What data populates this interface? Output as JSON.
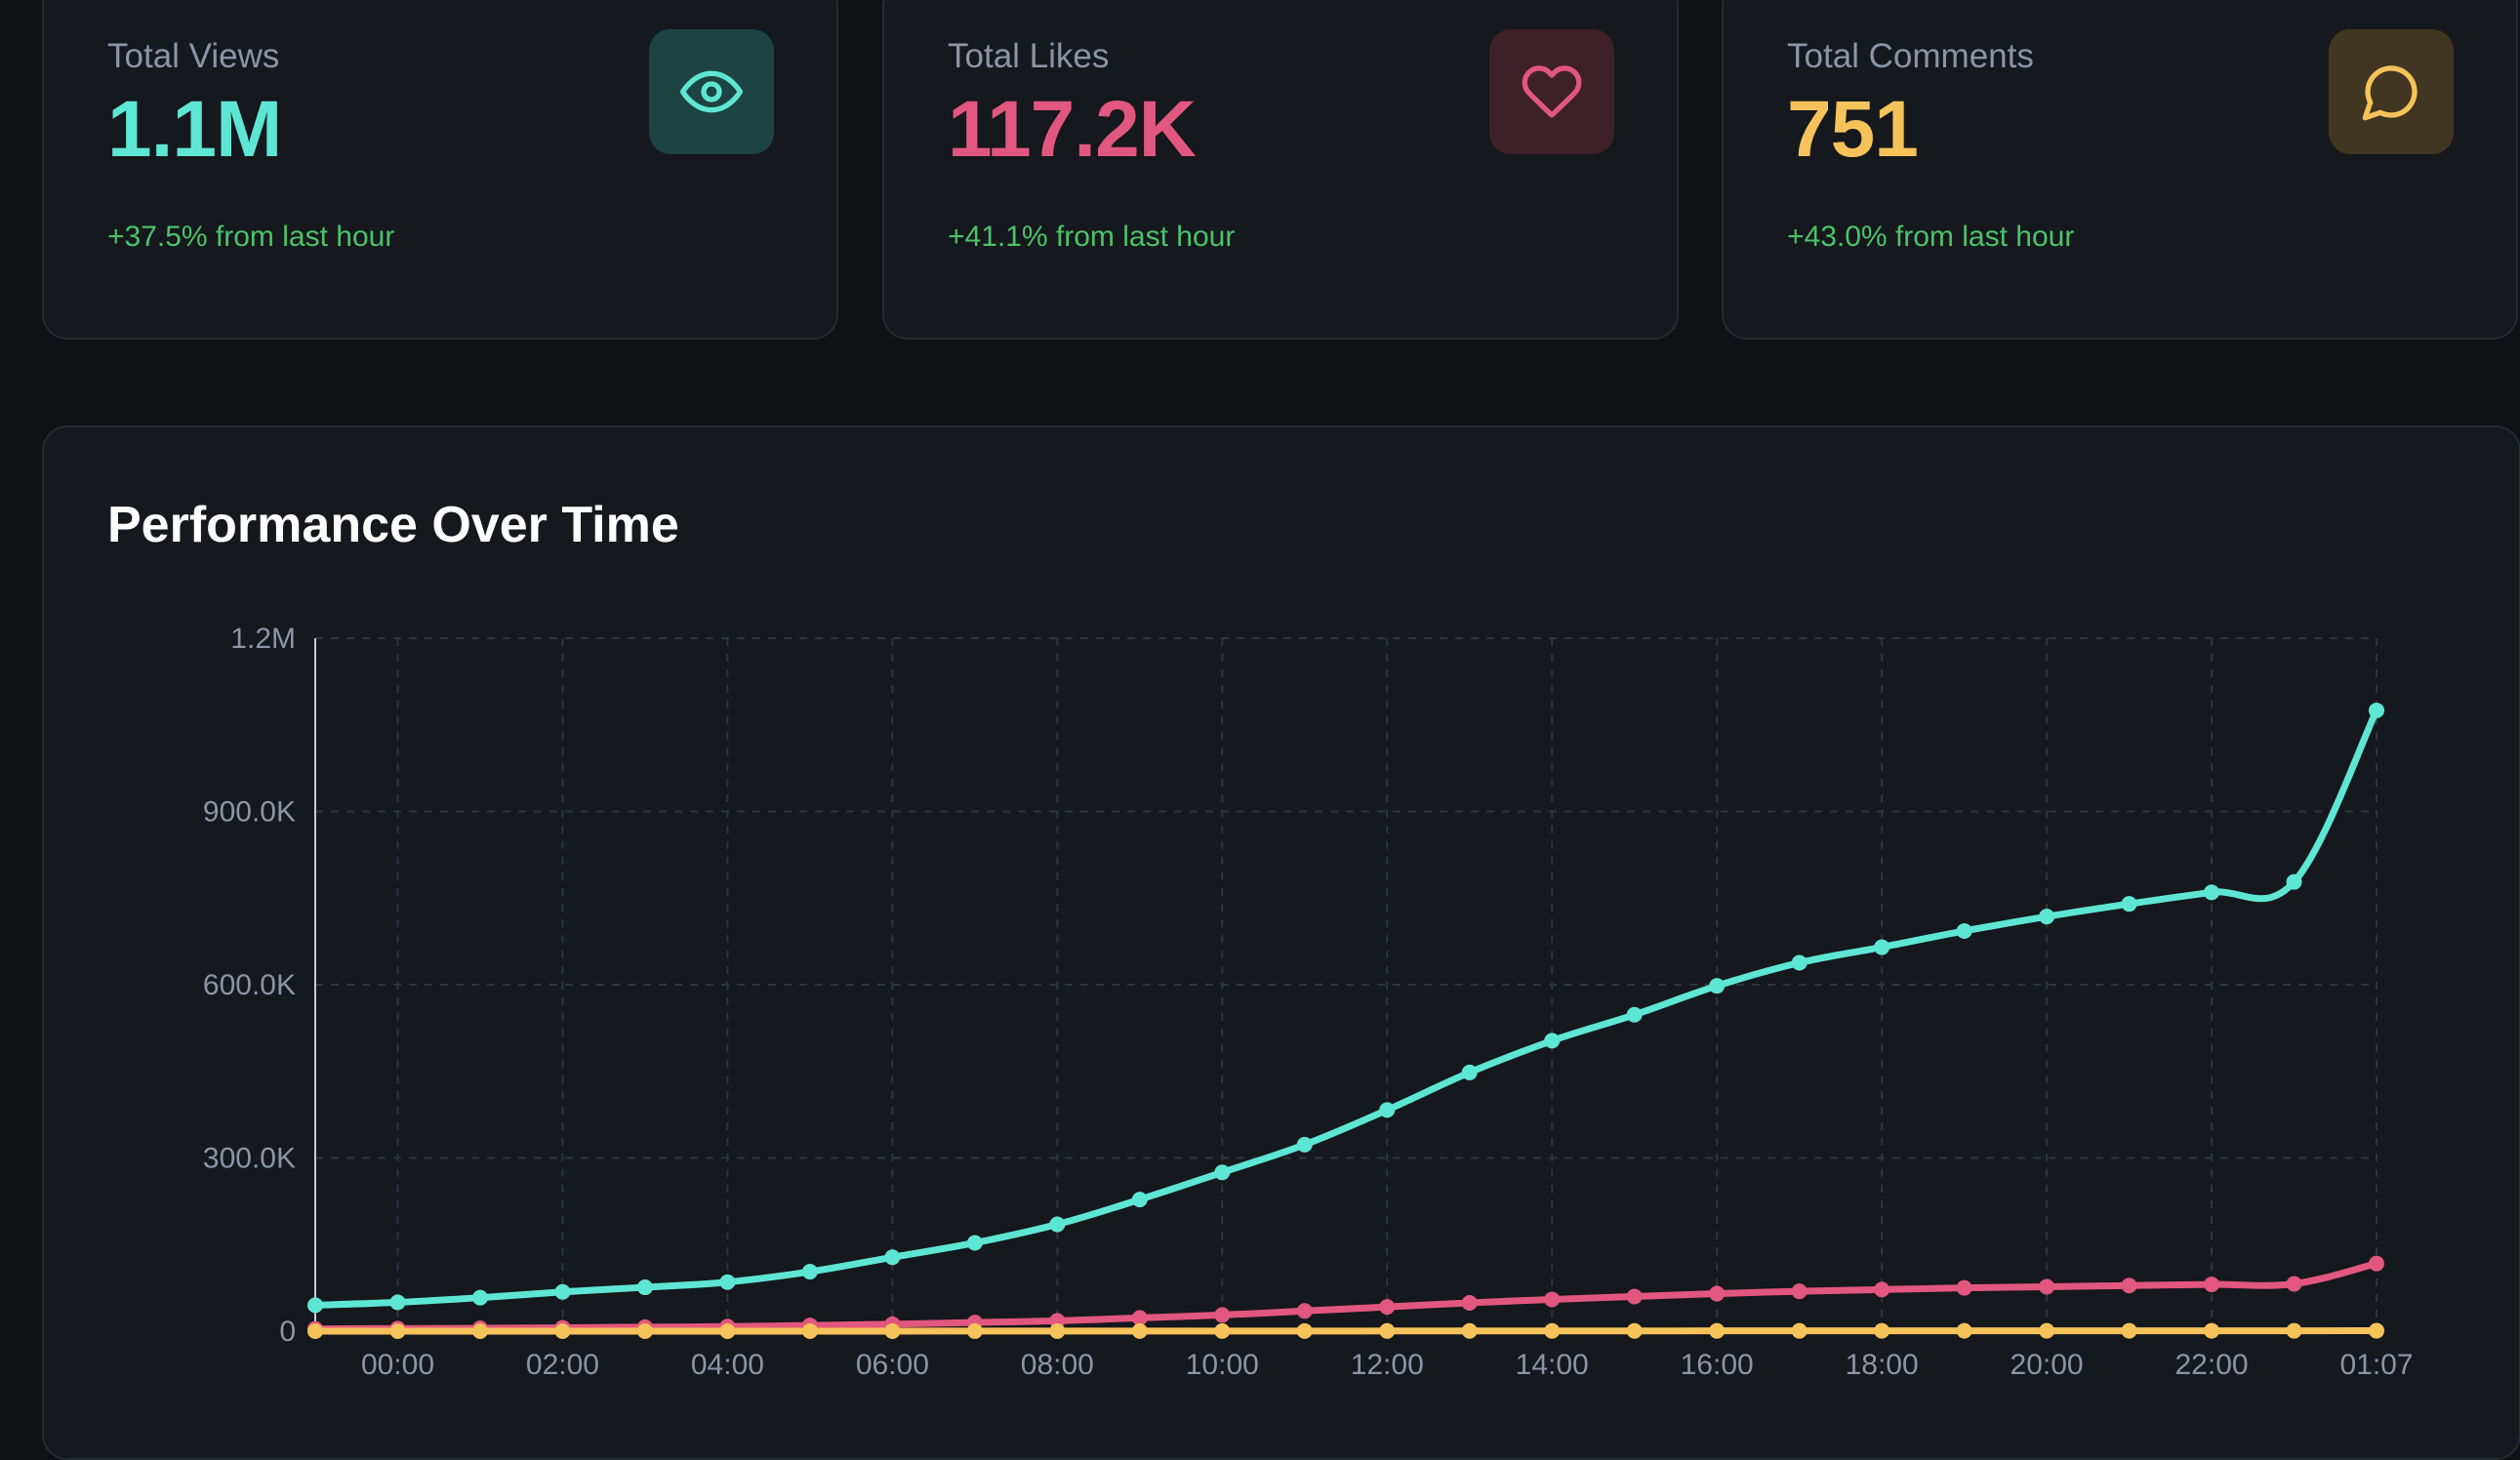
{
  "stats": [
    {
      "label": "Total Views",
      "value": "1.1M",
      "change": "+37.5% from last hour",
      "color": "#5ee6d4",
      "icon_bg": "#1d4442",
      "icon": "eye-icon"
    },
    {
      "label": "Total Likes",
      "value": "117.2K",
      "change": "+41.1% from last hour",
      "color": "#e2577f",
      "icon_bg": "#3e2029",
      "icon": "heart-icon"
    },
    {
      "label": "Total Comments",
      "value": "751",
      "change": "+43.0% from last hour",
      "color": "#f6c35a",
      "icon_bg": "#403621",
      "icon": "chat-bubble-icon"
    }
  ],
  "chart": {
    "title": "Performance Over Time"
  },
  "chart_data": {
    "type": "line",
    "title": "Performance Over Time",
    "x": [
      "23:00",
      "00:00",
      "01:00",
      "02:00",
      "03:00",
      "04:00",
      "05:00",
      "06:00",
      "07:00",
      "08:00",
      "09:00",
      "10:00",
      "11:00",
      "12:00",
      "13:00",
      "14:00",
      "15:00",
      "16:00",
      "17:00",
      "18:00",
      "19:00",
      "20:00",
      "21:00",
      "22:00",
      "23:00",
      "01:07"
    ],
    "x_tick_labels": [
      "00:00",
      "02:00",
      "04:00",
      "06:00",
      "08:00",
      "10:00",
      "12:00",
      "14:00",
      "16:00",
      "18:00",
      "20:00",
      "22:00",
      "01:07"
    ],
    "y_tick_labels": [
      "0",
      "300.0K",
      "600.0K",
      "900.0K",
      "1.2M"
    ],
    "ylim": [
      0,
      1200000
    ],
    "grid": true,
    "series": [
      {
        "color": "#5ee6d4",
        "values": [
          45000,
          50000,
          58000,
          68000,
          76000,
          85000,
          103000,
          128000,
          153000,
          185000,
          228000,
          275000,
          323000,
          383000,
          448000,
          503000,
          548000,
          598000,
          638000,
          665000,
          693000,
          718000,
          740000,
          760000,
          778000,
          1075000
        ]
      },
      {
        "color": "#e2577f",
        "values": [
          4000,
          4500,
          5000,
          6000,
          7000,
          8000,
          10000,
          12000,
          15000,
          18000,
          23000,
          28000,
          35000,
          42000,
          49000,
          55000,
          60000,
          65000,
          69000,
          72000,
          75000,
          77000,
          79000,
          81000,
          82000,
          117200
        ]
      },
      {
        "color": "#f6c35a",
        "values": [
          30,
          35,
          40,
          50,
          60,
          70,
          85,
          100,
          125,
          150,
          180,
          220,
          270,
          320,
          380,
          430,
          480,
          530,
          570,
          610,
          640,
          670,
          690,
          710,
          730,
          751
        ]
      }
    ]
  }
}
